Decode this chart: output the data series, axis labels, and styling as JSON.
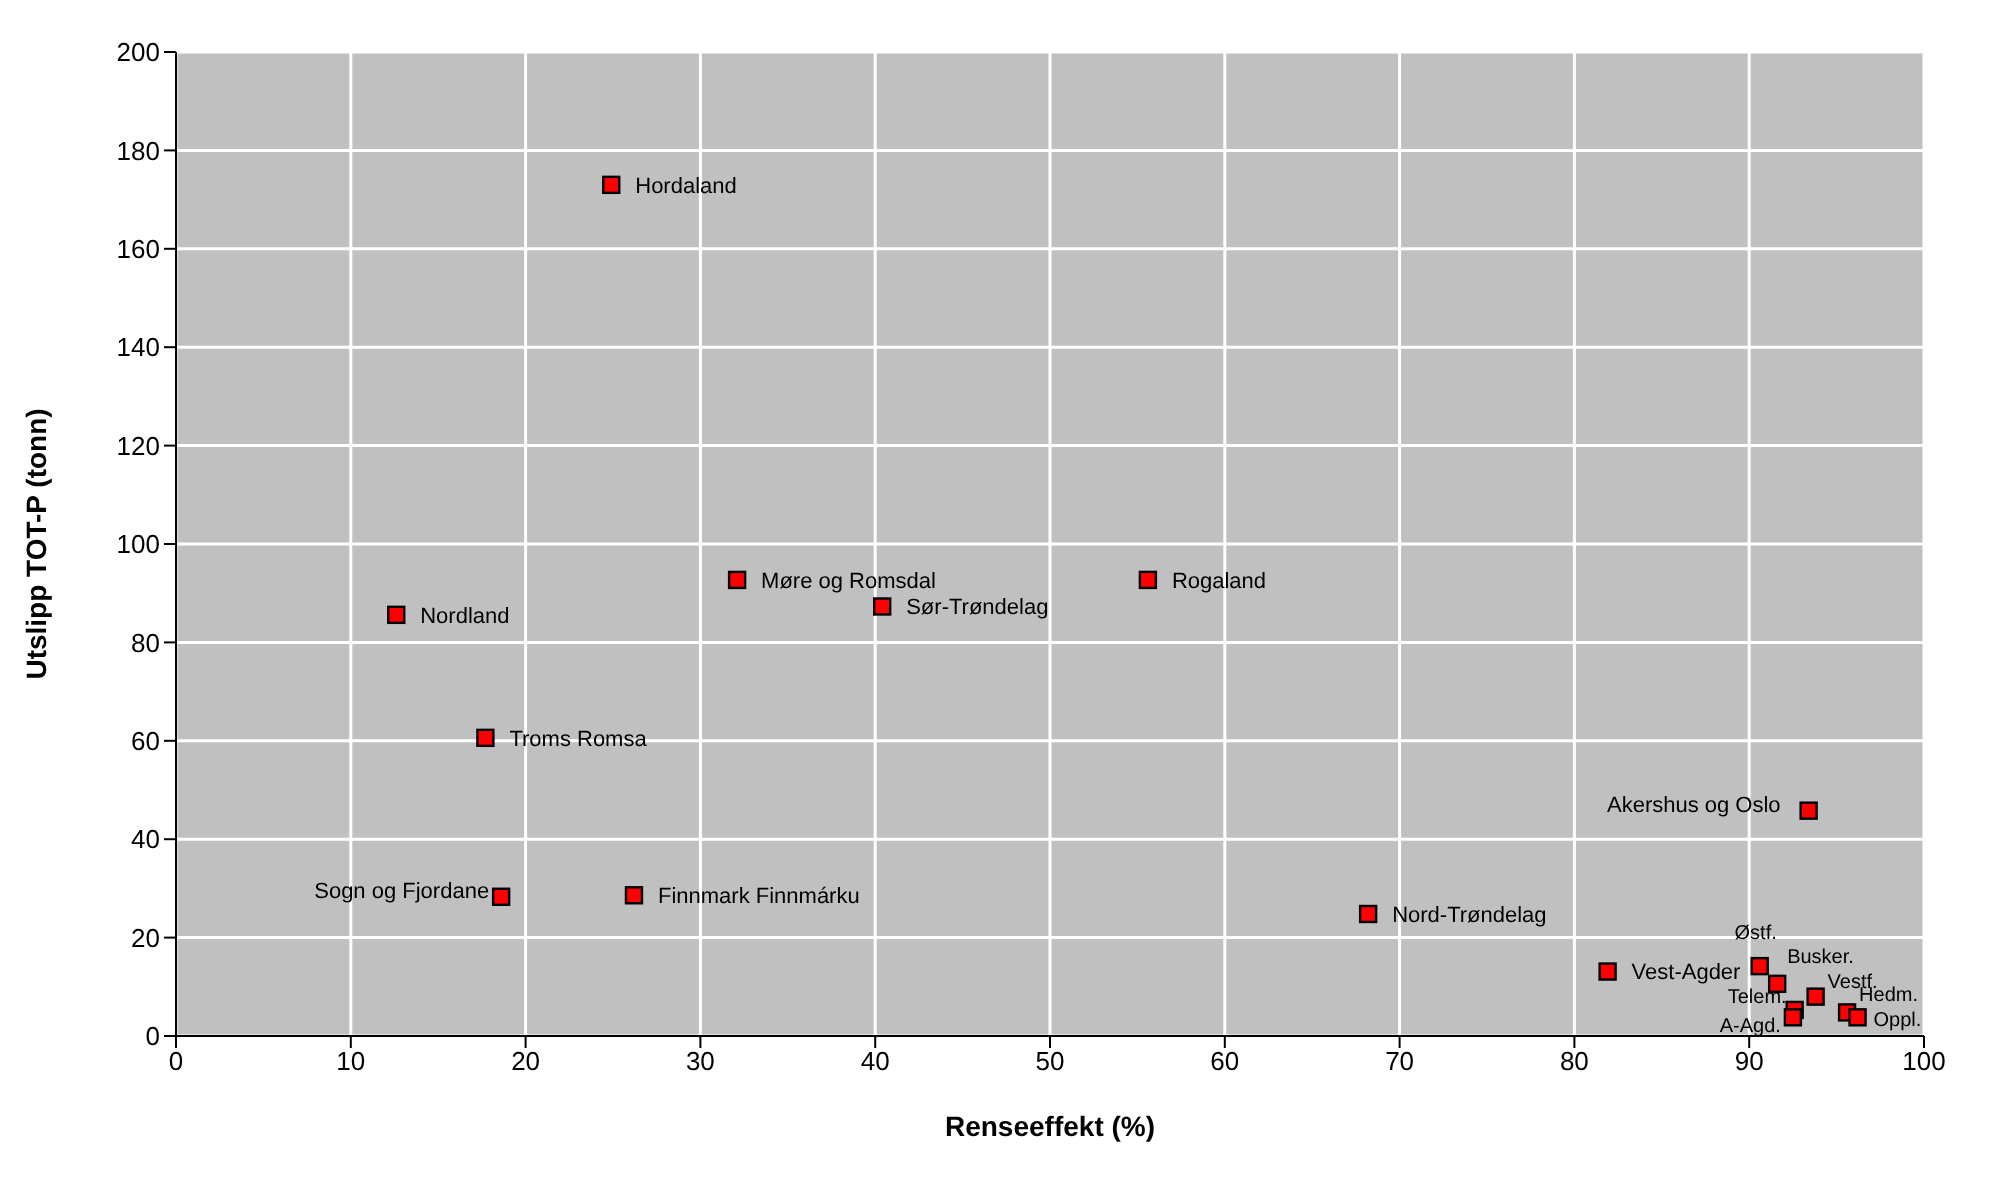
{
  "chart_data": {
    "type": "scatter",
    "xlabel": "Renseeffekt (%)",
    "ylabel": "Utslipp TOT-P (tonn)",
    "x": [
      24.9,
      12.6,
      32.1,
      40.4,
      55.6,
      17.7,
      18.6,
      26.2,
      68.2,
      93.4,
      81.9,
      90.6,
      91.6,
      93.8,
      92.6,
      92.5,
      95.6,
      96.2
    ],
    "series": [
      {
        "color": "#ff0000",
        "values": [
          173,
          85.6,
          92.7,
          87.3,
          92.7,
          60.6,
          28.3,
          28.6,
          24.8,
          45.8,
          13.1,
          14.2,
          10.6,
          8.0,
          5.3,
          3.8,
          4.8,
          3.8
        ]
      }
    ],
    "xlim": [
      0,
      100
    ],
    "xticks": [
      0,
      10,
      20,
      30,
      40,
      50,
      60,
      70,
      80,
      90,
      100
    ],
    "ylim": [
      0,
      200
    ],
    "yticks": [
      0,
      20,
      40,
      60,
      80,
      100,
      120,
      140,
      160,
      180,
      200
    ],
    "grid": true,
    "marker": "square",
    "annotations": [
      {
        "text": "Hordaland",
        "x": 24.9,
        "y": 173
      },
      {
        "text": "Nordland",
        "x": 12.6,
        "y": 85.6
      },
      {
        "text": "Møre og Romsdal",
        "x": 32.1,
        "y": 92.7
      },
      {
        "text": "Sør-Trøndelag",
        "x": 40.4,
        "y": 87.3
      },
      {
        "text": "Rogaland",
        "x": 55.6,
        "y": 92.7
      },
      {
        "text": "Troms Romsa",
        "x": 17.7,
        "y": 60.6
      },
      {
        "text": "Sogn og Fjordane",
        "x": 18.6,
        "y": 28.3
      },
      {
        "text": "Finnmark Finnmárku",
        "x": 26.2,
        "y": 28.6
      },
      {
        "text": "Nord-Trøndelag",
        "x": 68.2,
        "y": 24.8
      },
      {
        "text": "Akershus og Oslo",
        "x": 93.4,
        "y": 45.8
      },
      {
        "text": "Vest-Agder",
        "x": 81.9,
        "y": 13.1
      },
      {
        "text": "Østf.",
        "x": 90.6,
        "y": 14.2
      },
      {
        "text": "Busker.",
        "x": 91.6,
        "y": 10.6
      },
      {
        "text": "Vestf.",
        "x": 93.8,
        "y": 8.0
      },
      {
        "text": "Telem.",
        "x": 92.6,
        "y": 5.3
      },
      {
        "text": "A-Agd.",
        "x": 92.5,
        "y": 3.8
      },
      {
        "text": "Hedm.",
        "x": 95.6,
        "y": 4.8
      },
      {
        "text": "Oppl.",
        "x": 96.2,
        "y": 3.8
      }
    ]
  }
}
